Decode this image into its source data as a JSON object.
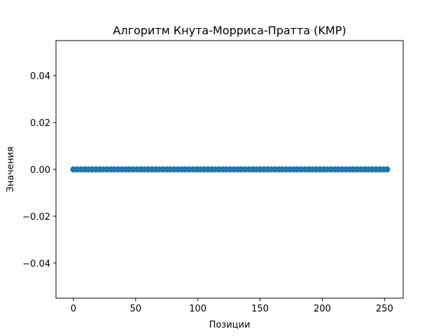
{
  "chart_data": {
    "type": "scatter",
    "title": "Алгоритм Кнута-Морриса-Пратта (KMP)",
    "xlabel": "Позиции",
    "ylabel": "Значения",
    "xlim": [
      -14,
      265
    ],
    "ylim": [
      -0.055,
      0.055
    ],
    "xticks": [
      0,
      50,
      100,
      150,
      200,
      250
    ],
    "xtick_labels": [
      "0",
      "50",
      "100",
      "150",
      "200",
      "250"
    ],
    "yticks": [
      0.04,
      0.02,
      0.0,
      -0.02,
      -0.04
    ],
    "ytick_labels": [
      "0.04",
      "0.02",
      "0.00",
      "−0.02",
      "−0.04"
    ],
    "grid": false,
    "marker_color": "#1f77b4",
    "series": [
      {
        "x": [
          0,
          3,
          6,
          9,
          12,
          15,
          18,
          21,
          24,
          27,
          30,
          33,
          36,
          39,
          42,
          45,
          48,
          51,
          54,
          57,
          60,
          63,
          66,
          69,
          72,
          75,
          78,
          81,
          84,
          87,
          90,
          93,
          96,
          99,
          102,
          105,
          108,
          111,
          114,
          117,
          120,
          123,
          126,
          129,
          132,
          135,
          138,
          141,
          144,
          147,
          150,
          153,
          156,
          159,
          162,
          165,
          168,
          171,
          174,
          177,
          180,
          183,
          186,
          189,
          192,
          195,
          198,
          201,
          204,
          207,
          210,
          213,
          216,
          219,
          222,
          225,
          228,
          231,
          234,
          237,
          240,
          243,
          246,
          249,
          252
        ],
        "y": [
          0,
          0,
          0,
          0,
          0,
          0,
          0,
          0,
          0,
          0,
          0,
          0,
          0,
          0,
          0,
          0,
          0,
          0,
          0,
          0,
          0,
          0,
          0,
          0,
          0,
          0,
          0,
          0,
          0,
          0,
          0,
          0,
          0,
          0,
          0,
          0,
          0,
          0,
          0,
          0,
          0,
          0,
          0,
          0,
          0,
          0,
          0,
          0,
          0,
          0,
          0,
          0,
          0,
          0,
          0,
          0,
          0,
          0,
          0,
          0,
          0,
          0,
          0,
          0,
          0,
          0,
          0,
          0,
          0,
          0,
          0,
          0,
          0,
          0,
          0,
          0,
          0,
          0,
          0,
          0,
          0,
          0,
          0,
          0,
          0
        ]
      }
    ]
  }
}
